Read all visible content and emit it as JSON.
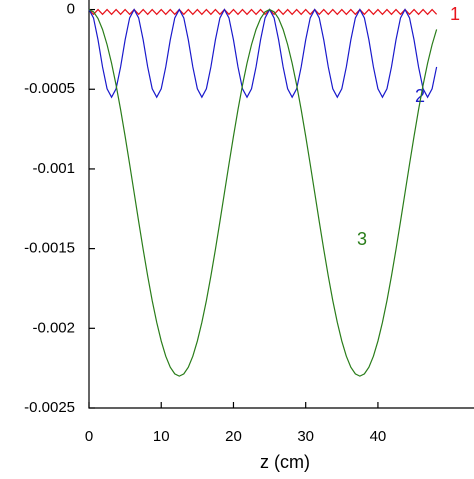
{
  "chart_data": {
    "type": "line",
    "x_label": "z (cm)",
    "x": [
      0,
      0.625,
      1.25,
      1.875,
      2.5,
      3.125,
      3.75,
      4.375,
      5,
      5.625,
      6.25,
      6.875,
      7.5,
      8.125,
      8.75,
      9.375,
      10,
      10.625,
      11.25,
      11.875,
      12.5,
      13.125,
      13.75,
      14.375,
      15,
      15.625,
      16.25,
      16.875,
      17.5,
      18.125,
      18.75,
      19.375,
      20,
      20.625,
      21.25,
      21.875,
      22.5,
      23.125,
      23.75,
      24.375,
      25,
      25.625,
      26.25,
      26.875,
      27.5,
      28.125,
      28.75,
      29.375,
      30,
      30.625,
      31.25,
      31.875,
      32.5,
      33.125,
      33.75,
      34.375,
      35,
      35.625,
      36.25,
      36.875,
      37.5,
      38.125,
      38.75,
      39.375,
      40,
      40.625,
      41.25,
      41.875,
      42.5,
      43.125,
      43.75,
      44.375,
      45,
      45.625,
      46.25,
      46.875,
      47.5,
      48.125
    ],
    "series": [
      {
        "name": "1",
        "color": "#e8141c",
        "values": [
          0,
          -3e-05,
          0,
          -3e-05,
          0,
          -3e-05,
          0,
          -3e-05,
          0,
          -3e-05,
          0,
          -3e-05,
          0,
          -3e-05,
          0,
          -3e-05,
          0,
          -3e-05,
          0,
          -3e-05,
          0,
          -3e-05,
          0,
          -3e-05,
          0,
          -3e-05,
          0,
          -3e-05,
          0,
          -3e-05,
          0,
          -3e-05,
          0,
          -3e-05,
          0,
          -3e-05,
          0,
          -3e-05,
          0,
          -3e-05,
          0,
          -3e-05,
          0,
          -3e-05,
          0,
          -3e-05,
          0,
          -3e-05,
          0,
          -3e-05,
          0,
          -3e-05,
          0,
          -3e-05,
          0,
          -3e-05,
          0,
          -3e-05,
          0,
          -3e-05,
          0,
          -3e-05,
          0,
          -3e-05,
          0,
          -3e-05,
          0,
          -3e-05,
          0,
          -3e-05,
          0,
          -3e-05,
          0,
          -3e-05,
          0,
          -3e-05,
          0,
          -3e-05
        ]
      },
      {
        "name": "2",
        "color": "#1a1acc",
        "values": [
          0,
          -5.25e-05,
          -0.00019,
          -0.00036,
          -0.000497,
          -0.00055,
          -0.000497,
          -0.00036,
          -0.00019,
          -5.25e-05,
          0,
          -5.25e-05,
          -0.00019,
          -0.00036,
          -0.000497,
          -0.00055,
          -0.000497,
          -0.00036,
          -0.00019,
          -5.25e-05,
          0,
          -5.25e-05,
          -0.00019,
          -0.00036,
          -0.000497,
          -0.00055,
          -0.000497,
          -0.00036,
          -0.00019,
          -5.25e-05,
          0,
          -5.25e-05,
          -0.00019,
          -0.00036,
          -0.000497,
          -0.00055,
          -0.000497,
          -0.00036,
          -0.00019,
          -5.25e-05,
          0,
          -5.25e-05,
          -0.00019,
          -0.00036,
          -0.000497,
          -0.00055,
          -0.000497,
          -0.00036,
          -0.00019,
          -5.25e-05,
          0,
          -5.25e-05,
          -0.00019,
          -0.00036,
          -0.000497,
          -0.00055,
          -0.000497,
          -0.00036,
          -0.00019,
          -5.25e-05,
          0,
          -5.25e-05,
          -0.00019,
          -0.00036,
          -0.000497,
          -0.00055,
          -0.000497,
          -0.00036,
          -0.00019,
          -5.25e-05,
          0,
          -5.25e-05,
          -0.00019,
          -0.00036,
          -0.000497,
          -0.00055,
          -0.000497,
          -0.00036
        ]
      },
      {
        "name": "3",
        "color": "#2a7d1a",
        "values": [
          0,
          -1.41e-05,
          -5.62e-05,
          -0.000125,
          -0.00022,
          -0.000337,
          -0.000474,
          -0.000628,
          -0.000795,
          -0.00097,
          -0.00115,
          -0.00133,
          -0.001505,
          -0.001672,
          -0.001826,
          -0.001963,
          -0.00208,
          -0.002175,
          -0.002244,
          -0.002286,
          -0.0023,
          -0.002286,
          -0.002244,
          -0.002175,
          -0.00208,
          -0.001963,
          -0.001826,
          -0.001672,
          -0.001505,
          -0.00133,
          -0.00115,
          -0.00097,
          -0.000795,
          -0.000628,
          -0.000474,
          -0.000337,
          -0.00022,
          -0.000125,
          -5.62e-05,
          -1.41e-05,
          0,
          -1.41e-05,
          -5.62e-05,
          -0.000125,
          -0.00022,
          -0.000337,
          -0.000474,
          -0.000628,
          -0.000795,
          -0.00097,
          -0.00115,
          -0.00133,
          -0.001505,
          -0.001672,
          -0.001826,
          -0.001963,
          -0.00208,
          -0.002175,
          -0.002244,
          -0.002286,
          -0.0023,
          -0.002286,
          -0.002244,
          -0.002175,
          -0.00208,
          -0.001963,
          -0.001826,
          -0.001672,
          -0.001505,
          -0.00133,
          -0.00115,
          -0.00097,
          -0.000795,
          -0.000628,
          -0.000474,
          -0.000337,
          -0.00022,
          -0.000125
        ]
      }
    ],
    "xlim": [
      0,
      53.3
    ],
    "xticks": [
      0,
      10,
      20,
      30,
      40
    ],
    "ylim": [
      -0.0025,
      6e-05
    ],
    "yticks": [
      0,
      -0.0005,
      -0.001,
      -0.0015,
      -0.002,
      -0.0025
    ]
  }
}
